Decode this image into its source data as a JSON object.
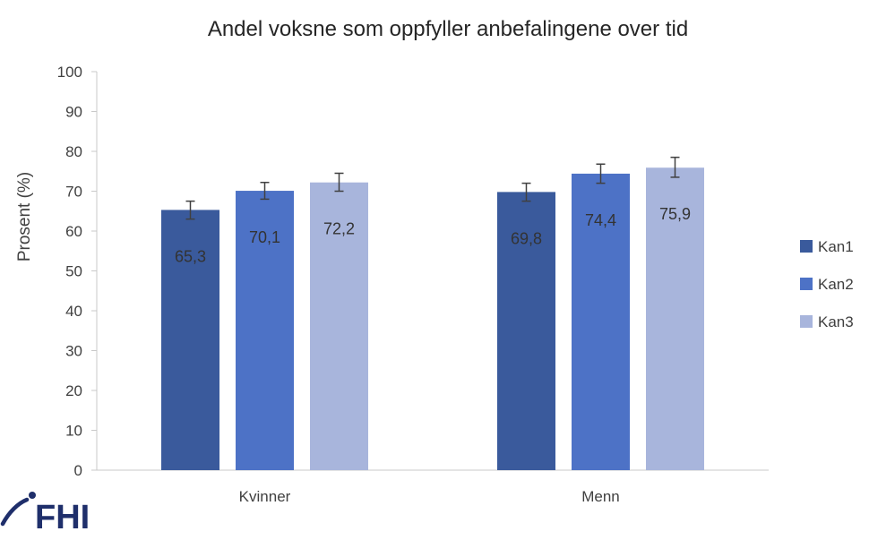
{
  "chart_data": {
    "type": "bar",
    "title": "Andel voksne som oppfyller anbefalingene over tid",
    "ylabel": "Prosent (%)",
    "xlabel": "",
    "ylim": [
      0,
      100
    ],
    "yticks": [
      0,
      10,
      20,
      30,
      40,
      50,
      60,
      70,
      80,
      90,
      100
    ],
    "grid": false,
    "legend_position": "right",
    "categories": [
      "Kvinner",
      "Menn"
    ],
    "series": [
      {
        "name": "Kan1",
        "values": [
          65.3,
          69.8
        ],
        "labels": [
          "65,3",
          "69,8"
        ],
        "err_low": [
          63.0,
          67.5
        ],
        "err_high": [
          67.5,
          72.0
        ],
        "color": "#3a5a9c"
      },
      {
        "name": "Kan2",
        "values": [
          70.1,
          74.4
        ],
        "labels": [
          "70,1",
          "74,4"
        ],
        "err_low": [
          68.0,
          72.0
        ],
        "err_high": [
          72.2,
          76.8
        ],
        "color": "#4d72c6"
      },
      {
        "name": "Kan3",
        "values": [
          72.2,
          75.9
        ],
        "labels": [
          "72,2",
          "75,9"
        ],
        "err_low": [
          70.0,
          73.5
        ],
        "err_high": [
          74.5,
          78.5
        ],
        "color": "#a8b5dc"
      }
    ]
  },
  "logo": {
    "text": "FHI",
    "color": "#1f2f6b"
  }
}
